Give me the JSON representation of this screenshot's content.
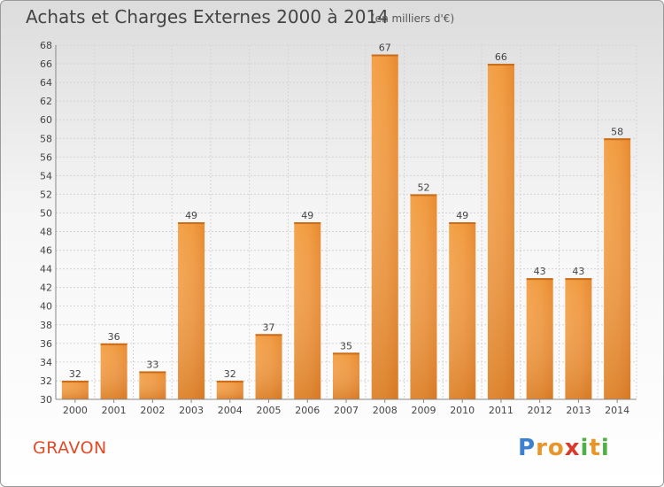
{
  "header": {
    "title": "Achats et Charges Externes 2000 à 2014",
    "unit": "(en milliers d'€)"
  },
  "footer": {
    "commune": "GRAVON",
    "brand": "Proxiti",
    "brand_letters": [
      {
        "ch": "P",
        "color": "#3a7fd0"
      },
      {
        "ch": "r",
        "color": "#e8952a"
      },
      {
        "ch": "o",
        "color": "#e8952a"
      },
      {
        "ch": "x",
        "color": "#d93a2a"
      },
      {
        "ch": "i",
        "color": "#4fb043"
      },
      {
        "ch": "t",
        "color": "#e8952a"
      },
      {
        "ch": "i",
        "color": "#4fb043"
      }
    ]
  },
  "chart_data": {
    "type": "bar",
    "title": "Achats et Charges Externes 2000 à 2014",
    "subtitle": "(en milliers d'€)",
    "categories": [
      "2000",
      "2001",
      "2002",
      "2003",
      "2004",
      "2005",
      "2006",
      "2007",
      "2008",
      "2009",
      "2010",
      "2011",
      "2012",
      "2013",
      "2014"
    ],
    "values": [
      32,
      36,
      33,
      49,
      32,
      37,
      49,
      35,
      67,
      52,
      49,
      66,
      43,
      43,
      58
    ],
    "ylim": [
      30,
      68
    ],
    "yticks": [
      30,
      32,
      34,
      36,
      38,
      40,
      42,
      44,
      46,
      48,
      50,
      52,
      54,
      56,
      58,
      60,
      62,
      64,
      66,
      68
    ],
    "grid": true,
    "bar_color_top": "#f6a44e",
    "bar_color_bottom": "#d9741f"
  }
}
